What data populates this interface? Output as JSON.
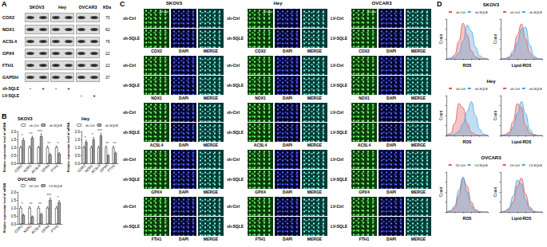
{
  "panel_labels": [
    "A",
    "B",
    "C",
    "D"
  ],
  "western_blot": {
    "cell_lines": [
      "SKOV3",
      "Hey",
      "OVCAR3"
    ],
    "unit": "KDa",
    "proteins": [
      {
        "name": "COX2",
        "kda": 70
      },
      {
        "name": "NOX1",
        "kda": 62
      },
      {
        "name": "ACSL4",
        "kda": 76
      },
      {
        "name": "GPX4",
        "kda": 22
      },
      {
        "name": "FTH1",
        "kda": 22
      },
      {
        "name": "GAPDH",
        "kda": 37
      }
    ],
    "treatments": [
      {
        "name": "sh-SQLE",
        "lanes": [
          "-",
          "+",
          "-",
          "+",
          null,
          null
        ]
      },
      {
        "name": "LV-SQLE",
        "lanes": [
          null,
          null,
          null,
          null,
          "-",
          "+"
        ]
      }
    ]
  },
  "immunofluorescence": {
    "scale_bar": "50 μm",
    "columns": [
      "DAPI",
      "MERGE"
    ],
    "panels": [
      {
        "cell_line": "SKOV3",
        "conditions": [
          "sh-Ctrl",
          "sh-SQLE"
        ],
        "markers": [
          "COX2",
          "NOX1",
          "ACSL4",
          "GPX4",
          "FTH1"
        ]
      },
      {
        "cell_line": "Hey",
        "conditions": [
          "sh-Ctrl",
          "sh-SQLE"
        ],
        "markers": [
          "COX2",
          "NOX1",
          "ACSL4",
          "GPX4",
          "FTH1"
        ]
      },
      {
        "cell_line": "OVCAR3",
        "conditions": [
          "LV-Ctrl",
          "LV-SQLE"
        ],
        "markers": [
          "COX2",
          "NOX1",
          "ACSL4",
          "GPX4",
          "FTH1"
        ]
      }
    ]
  },
  "chart_data": [
    {
      "type": "bar",
      "title": "SKOV3",
      "ylabel": "Relative expression level of mRNA",
      "categories": [
        "COX2",
        "NOX1",
        "ACSL4",
        "GPX4",
        "FTH1"
      ],
      "ylim": [
        0,
        2
      ],
      "yticks": [
        {
          "value": 0,
          "label": "0.0"
        },
        0.5,
        {
          "value": 1,
          "label": "1.0"
        },
        1.5,
        {
          "value": 2,
          "label": "2.0"
        }
      ],
      "legend": "top-right",
      "series": [
        {
          "name": "sh-Ctrl",
          "color": "#ffffff",
          "values": [
            1,
            1,
            1,
            1,
            1
          ],
          "errors": [
            0.08,
            0.1,
            0.07,
            0.09,
            0.08
          ]
        },
        {
          "name": "sh-SQLE",
          "color": "#a6a6a6",
          "values": [
            1.45,
            1.6,
            1.7,
            0.55,
            0.6
          ],
          "errors": [
            0.12,
            0.1,
            0.15,
            0.06,
            0.07
          ]
        }
      ],
      "annotations": [
        "*",
        "**",
        "***",
        "**",
        "*"
      ]
    },
    {
      "type": "bar",
      "title": "Hey",
      "ylabel": "Relative expression level of mRNA",
      "categories": [
        "COX2",
        "NOX1",
        "ACSL4",
        "GPX4",
        "FTH1"
      ],
      "ylim": [
        0,
        2
      ],
      "yticks": [
        {
          "value": 0,
          "label": "0.0"
        },
        0.5,
        {
          "value": 1,
          "label": "1.0"
        },
        1.5,
        {
          "value": 2,
          "label": "2.0"
        }
      ],
      "legend": "top-right",
      "series": [
        {
          "name": "sh-Ctrl",
          "color": "#ffffff",
          "values": [
            1,
            1,
            1,
            1,
            1
          ],
          "errors": [
            0.07,
            0.09,
            0.08,
            0.1,
            0.08
          ]
        },
        {
          "name": "sh-SQLE",
          "color": "#a6a6a6",
          "values": [
            1.35,
            1.5,
            1.75,
            0.5,
            0.65
          ],
          "errors": [
            0.1,
            0.12,
            0.14,
            0.05,
            0.06
          ]
        }
      ],
      "annotations": [
        "*",
        "*",
        "***",
        "**",
        "**"
      ]
    },
    {
      "type": "bar",
      "title": "OVCAR3",
      "ylabel": "Relative expression level of mRNA",
      "categories": [
        "COX2",
        "NOX1",
        "ACSL4",
        "GPX4",
        "FTH1"
      ],
      "ylim": [
        0,
        2
      ],
      "yticks": [
        {
          "value": 0,
          "label": "0.0"
        },
        0.5,
        {
          "value": 1,
          "label": "1.0"
        },
        1.5,
        {
          "value": 2,
          "label": "2.0"
        }
      ],
      "legend": "top-right",
      "series": [
        {
          "name": "LV-Ctrl",
          "color": "#ffffff",
          "values": [
            1,
            1,
            1,
            1,
            1
          ],
          "errors": [
            0.09,
            0.08,
            0.1,
            0.07,
            0.09
          ]
        },
        {
          "name": "LV-SQLE",
          "color": "#a6a6a6",
          "values": [
            0.55,
            0.45,
            0.6,
            1.5,
            1.35
          ],
          "errors": [
            0.06,
            0.05,
            0.07,
            0.12,
            0.11
          ]
        }
      ],
      "annotations": [
        "*",
        "**",
        "**",
        "***",
        "*"
      ]
    },
    {
      "type": "line",
      "title": "SKOV3",
      "xlabel": "ROS",
      "ylabel": "Count",
      "x": [
        0,
        0.5,
        1,
        1.5,
        2,
        2.5,
        3,
        3.5,
        4,
        4.5,
        5
      ],
      "xlim": [
        0,
        5
      ],
      "xticks": [
        0,
        1,
        2,
        3,
        4,
        5
      ],
      "ylim": [
        0,
        100
      ],
      "yticks": [
        0,
        25,
        50,
        75,
        100
      ],
      "tick_labels": false,
      "legend": "top-right",
      "series": [
        {
          "name": "sh-Ctrl",
          "color": "#e05a5a",
          "values": [
            0,
            2,
            10,
            45,
            90,
            60,
            20,
            5,
            1,
            0,
            0
          ]
        },
        {
          "name": "sh-SQLE",
          "color": "#4aa3df",
          "values": [
            0,
            1,
            4,
            15,
            45,
            85,
            70,
            30,
            8,
            2,
            0
          ]
        }
      ]
    },
    {
      "type": "line",
      "xlabel": "Lipid-ROS",
      "ylabel": "Count",
      "x": [
        0,
        0.5,
        1,
        1.5,
        2,
        2.5,
        3,
        3.5,
        4,
        4.5,
        5
      ],
      "xlim": [
        0,
        5
      ],
      "xticks": [
        0,
        1,
        2,
        3,
        4,
        5
      ],
      "ylim": [
        0,
        100
      ],
      "yticks": [
        0,
        25,
        50,
        75,
        100
      ],
      "tick_labels": false,
      "legend": "top-right",
      "series": [
        {
          "name": "sh-Ctrl",
          "color": "#e05a5a",
          "values": [
            0,
            1,
            5,
            20,
            60,
            88,
            50,
            15,
            3,
            0,
            0
          ]
        },
        {
          "name": "sh-SQLE",
          "color": "#4aa3df",
          "values": [
            0,
            1,
            3,
            12,
            40,
            75,
            80,
            35,
            8,
            1,
            0
          ]
        }
      ]
    },
    {
      "type": "line",
      "title": "Hey",
      "xlabel": "ROS",
      "ylabel": "Count",
      "x": [
        0,
        0.5,
        1,
        1.5,
        2,
        2.5,
        3,
        3.5,
        4,
        4.5,
        5
      ],
      "xlim": [
        0,
        5
      ],
      "xticks": [
        0,
        1,
        2,
        3,
        4,
        5
      ],
      "ylim": [
        0,
        100
      ],
      "yticks": [
        0,
        25,
        50,
        75,
        100
      ],
      "tick_labels": false,
      "legend": "top-right",
      "series": [
        {
          "name": "sh-Ctrl",
          "color": "#e05a5a",
          "values": [
            0,
            5,
            30,
            80,
            70,
            30,
            8,
            2,
            0,
            0,
            0
          ]
        },
        {
          "name": "sh-SQLE",
          "color": "#4aa3df",
          "values": [
            0,
            1,
            3,
            10,
            30,
            60,
            85,
            50,
            15,
            3,
            0
          ]
        }
      ]
    },
    {
      "type": "line",
      "xlabel": "Lipid-ROS",
      "ylabel": "Count",
      "x": [
        0,
        0.5,
        1,
        1.5,
        2,
        2.5,
        3,
        3.5,
        4,
        4.5,
        5
      ],
      "xlim": [
        0,
        5
      ],
      "xticks": [
        0,
        1,
        2,
        3,
        4,
        5
      ],
      "ylim": [
        0,
        100
      ],
      "yticks": [
        0,
        25,
        50,
        75,
        100
      ],
      "tick_labels": false,
      "legend": "top-right",
      "series": [
        {
          "name": "sh-Ctrl",
          "color": "#e05a5a",
          "values": [
            0,
            2,
            8,
            35,
            80,
            70,
            25,
            6,
            1,
            0,
            0
          ]
        },
        {
          "name": "sh-SQLE",
          "color": "#4aa3df",
          "values": [
            0,
            1,
            4,
            20,
            55,
            85,
            55,
            15,
            3,
            0,
            0
          ]
        }
      ]
    },
    {
      "type": "line",
      "title": "OVCAR3",
      "xlabel": "ROS",
      "ylabel": "Count",
      "x": [
        0,
        0.5,
        1,
        1.5,
        2,
        2.5,
        3,
        3.5,
        4,
        4.5,
        5
      ],
      "xlim": [
        0,
        5
      ],
      "xticks": [
        0,
        1,
        2,
        3,
        4,
        5
      ],
      "ylim": [
        0,
        100
      ],
      "yticks": [
        0,
        25,
        50,
        75,
        100
      ],
      "tick_labels": false,
      "legend": "top-right",
      "series": [
        {
          "name": "LV-Ctrl",
          "color": "#e05a5a",
          "values": [
            0,
            2,
            10,
            40,
            85,
            65,
            25,
            6,
            1,
            0,
            0
          ]
        },
        {
          "name": "LV-SQLE",
          "color": "#4aa3df",
          "values": [
            0,
            3,
            15,
            55,
            88,
            50,
            15,
            3,
            0,
            0,
            0
          ]
        }
      ]
    },
    {
      "type": "line",
      "xlabel": "Lipid-ROS",
      "ylabel": "Count",
      "x": [
        0,
        0.5,
        1,
        1.5,
        2,
        2.5,
        3,
        3.5,
        4,
        4.5,
        5
      ],
      "xlim": [
        0,
        5
      ],
      "xticks": [
        0,
        1,
        2,
        3,
        4,
        5
      ],
      "ylim": [
        0,
        100
      ],
      "yticks": [
        0,
        25,
        50,
        75,
        100
      ],
      "tick_labels": false,
      "legend": "top-right",
      "series": [
        {
          "name": "LV-Ctrl",
          "color": "#e05a5a",
          "values": [
            0,
            1,
            6,
            25,
            65,
            85,
            45,
            12,
            2,
            0,
            0
          ]
        },
        {
          "name": "LV-SQLE",
          "color": "#4aa3df",
          "values": [
            0,
            2,
            10,
            40,
            80,
            70,
            30,
            8,
            1,
            0,
            0
          ]
        }
      ]
    }
  ]
}
